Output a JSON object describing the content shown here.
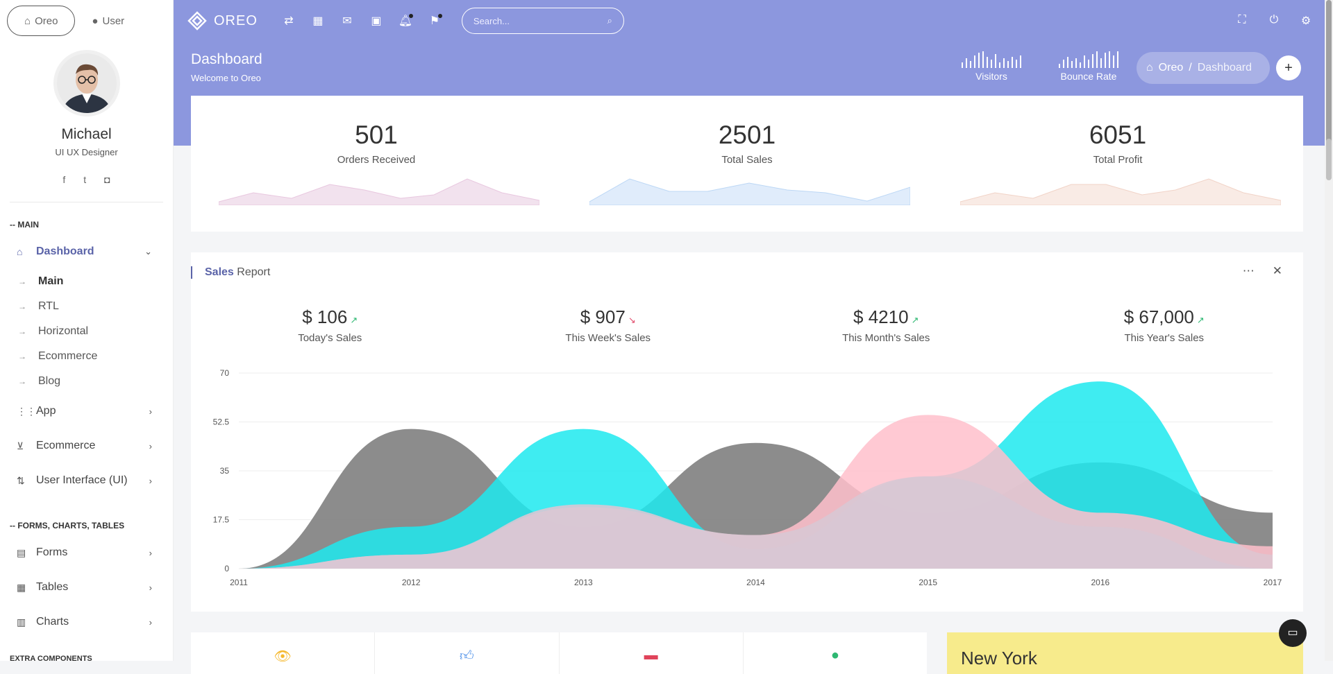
{
  "sidebar": {
    "tabs": [
      {
        "label": "Oreo",
        "icon": "home-icon"
      },
      {
        "label": "User",
        "icon": "user-icon"
      }
    ],
    "profile": {
      "name": "Michael",
      "role": "UI UX Designer",
      "social": [
        "facebook-icon",
        "twitter-icon",
        "instagram-icon"
      ]
    },
    "sections": [
      {
        "header": "-- MAIN"
      },
      {
        "header": "-- FORMS, CHARTS, TABLES"
      },
      {
        "header": "EXTRA COMPONENTS"
      }
    ],
    "menu": {
      "dashboard": "Dashboard",
      "sub": [
        "Main",
        "RTL",
        "Horizontal",
        "Ecommerce",
        "Blog"
      ],
      "app": "App",
      "ecommerce": "Ecommerce",
      "ui": "User Interface (UI)",
      "forms": "Forms",
      "tables": "Tables",
      "charts": "Charts"
    }
  },
  "topbar": {
    "brand": "OREO",
    "icons": [
      "transfer-icon",
      "calendar-icon",
      "mail-icon",
      "contact-card-icon",
      "bell-icon",
      "flag-icon"
    ],
    "search_placeholder": "Search...",
    "right_icons": [
      "fullscreen-icon",
      "power-icon",
      "settings-icon"
    ]
  },
  "header": {
    "title": "Dashboard",
    "subtitle": "Welcome to Oreo",
    "visitors": "Visitors",
    "bounce": "Bounce Rate",
    "breadcrumb": [
      "Oreo",
      "/",
      "Dashboard"
    ],
    "plus": "+"
  },
  "stats": [
    {
      "value": "501",
      "label": "Orders Received",
      "color": "#e8c7df"
    },
    {
      "value": "2501",
      "label": "Total Sales",
      "color": "#bcd7f5"
    },
    {
      "value": "6051",
      "label": "Total Profit",
      "color": "#f1d3c7"
    }
  ],
  "report": {
    "title_bold": "Sales",
    "title_rest": " Report",
    "kpis": [
      {
        "value": "$ 106",
        "trend": "up",
        "label": "Today's Sales"
      },
      {
        "value": "$ 907",
        "trend": "down",
        "label": "This Week's Sales"
      },
      {
        "value": "$ 4210",
        "trend": "up",
        "label": "This Month's Sales"
      },
      {
        "value": "$ 67,000",
        "trend": "up",
        "label": "This Year's Sales"
      }
    ]
  },
  "chart_data": {
    "type": "area",
    "categories": [
      "2011",
      "2012",
      "2013",
      "2014",
      "2015",
      "2016",
      "2017"
    ],
    "ylim": [
      0,
      70
    ],
    "yticks": [
      "0",
      "17.5",
      "35",
      "52.5",
      "70"
    ],
    "series": [
      {
        "color": "#808080",
        "values": [
          0,
          50,
          15,
          45,
          20,
          38,
          20
        ]
      },
      {
        "color": "#1de9ee",
        "values": [
          0,
          15,
          50,
          7,
          33,
          67,
          5
        ]
      },
      {
        "color": "#ffc0cb",
        "values": [
          0,
          5,
          22,
          12,
          55,
          20,
          8
        ]
      },
      {
        "color": "#d8c8d4",
        "values": [
          0,
          5,
          23,
          12,
          33,
          15,
          0
        ]
      }
    ],
    "grid": true
  },
  "bottom": {
    "weather_city": "New York"
  }
}
